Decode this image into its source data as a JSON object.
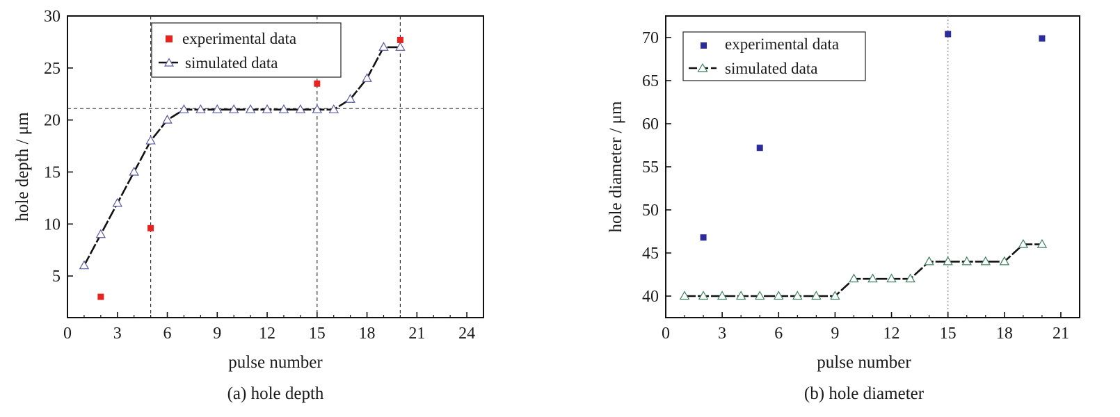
{
  "chart_data": [
    {
      "type": "line",
      "caption": "(a) hole depth",
      "xlabel": "pulse number",
      "ylabel": "hole depth / μm",
      "xlim": [
        0,
        25
      ],
      "ylim": [
        1,
        30
      ],
      "xticks": [
        0,
        3,
        6,
        9,
        12,
        15,
        18,
        21,
        24
      ],
      "yticks": [
        5,
        10,
        15,
        20,
        25,
        30
      ],
      "legend": [
        "experimental data",
        "simulated data"
      ],
      "legend_position": "top-center",
      "colors": {
        "experimental": "#e8231f",
        "simulated_marker": "#5a5aa0",
        "line": "#111111"
      },
      "reference_lines": {
        "h": [
          21.1
        ],
        "v": [
          5,
          15,
          20
        ]
      },
      "series": [
        {
          "name": "experimental data",
          "kind": "scatter",
          "x": [
            2,
            5,
            15,
            20
          ],
          "y": [
            3.0,
            9.6,
            23.5,
            27.7
          ]
        },
        {
          "name": "simulated data",
          "kind": "line",
          "x": [
            1,
            2,
            3,
            4,
            5,
            6,
            7,
            8,
            9,
            10,
            11,
            12,
            13,
            14,
            15,
            16,
            17,
            18,
            19,
            20
          ],
          "y": [
            6,
            9,
            12,
            15,
            18,
            20,
            21,
            21,
            21,
            21,
            21,
            21,
            21,
            21,
            21,
            21,
            22,
            24,
            27,
            27
          ]
        }
      ]
    },
    {
      "type": "line",
      "caption": "(b) hole diameter",
      "xlabel": "pulse number",
      "ylabel": "hole diameter / μm",
      "xlim": [
        0,
        22
      ],
      "ylim": [
        37.5,
        72.5
      ],
      "xticks": [
        0,
        3,
        6,
        9,
        12,
        15,
        18,
        21
      ],
      "yticks": [
        40,
        45,
        50,
        55,
        60,
        65,
        70
      ],
      "legend": [
        "experimental data",
        "simulated data"
      ],
      "legend_position": "top-left",
      "colors": {
        "experimental": "#2b2b9a",
        "simulated_marker": "#3f7f5f",
        "line": "#111111"
      },
      "reference_lines": {
        "h": [],
        "v": [
          15
        ]
      },
      "series": [
        {
          "name": "experimental data",
          "kind": "scatter",
          "x": [
            2,
            5,
            15,
            20
          ],
          "y": [
            46.8,
            57.2,
            70.4,
            69.9
          ]
        },
        {
          "name": "simulated data",
          "kind": "line",
          "x": [
            1,
            2,
            3,
            4,
            5,
            6,
            7,
            8,
            9,
            10,
            11,
            12,
            13,
            14,
            15,
            16,
            17,
            18,
            19,
            20
          ],
          "y": [
            40,
            40,
            40,
            40,
            40,
            40,
            40,
            40,
            40,
            42,
            42,
            42,
            42,
            44,
            44,
            44,
            44,
            44,
            46,
            46
          ]
        }
      ]
    }
  ]
}
